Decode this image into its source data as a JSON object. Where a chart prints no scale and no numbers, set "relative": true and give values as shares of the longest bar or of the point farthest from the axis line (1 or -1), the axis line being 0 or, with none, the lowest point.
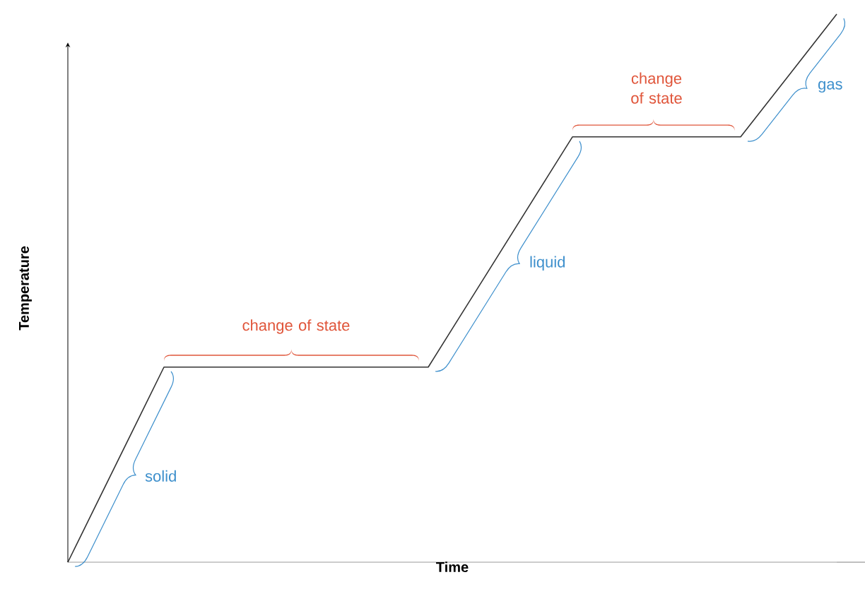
{
  "chart_data": {
    "type": "line",
    "relative": true,
    "xlabel": "Time",
    "ylabel": "Temperature",
    "categories": [
      null,
      null,
      null,
      null,
      null,
      null,
      null,
      null,
      null,
      null,
      null,
      null,
      null,
      null,
      null,
      null,
      null,
      null,
      null,
      null,
      null,
      null,
      null,
      null,
      null,
      null,
      null,
      null,
      null,
      null,
      null,
      null,
      null
    ],
    "series": [
      {
        "color": "#333333",
        "values": [
          0,
          0.089,
          0.178,
          0.267,
          0.356,
          0.356,
          0.356,
          0.356,
          0.356,
          0.356,
          0.356,
          0.356,
          0.356,
          0.356,
          0.356,
          0.356,
          0.426,
          0.496,
          0.566,
          0.636,
          0.706,
          0.776,
          0.776,
          0.776,
          0.776,
          0.776,
          0.776,
          0.776,
          0.776,
          0.832,
          0.888,
          0.944,
          1
        ]
      }
    ],
    "annotations": [
      "solid",
      "change of state",
      "liquid",
      "change of state",
      "gas"
    ]
  }
}
